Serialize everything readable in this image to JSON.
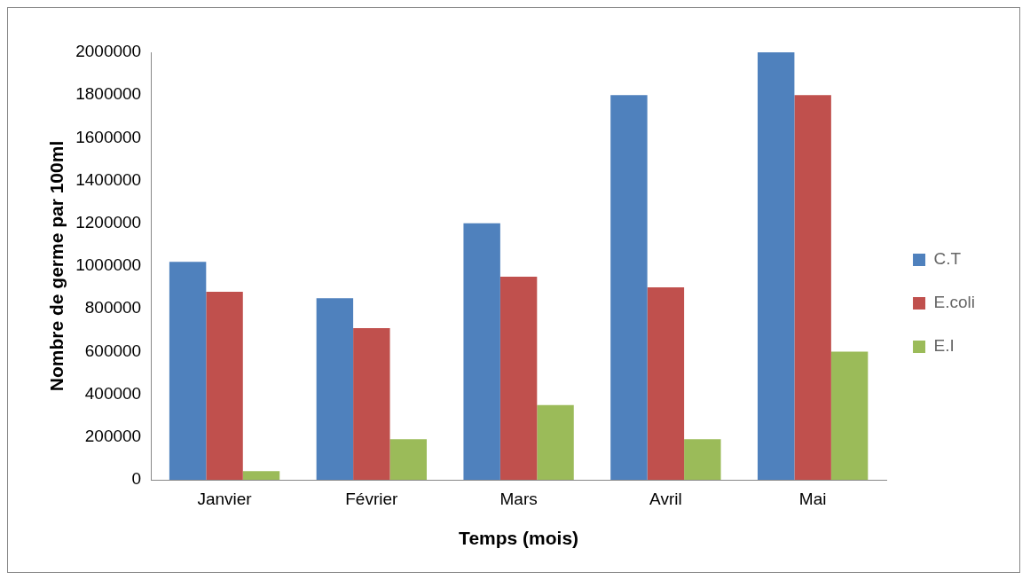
{
  "chart_data": {
    "type": "bar",
    "xlabel": "Temps (mois)",
    "ylabel": "Nombre de germe par 100ml",
    "categories": [
      "Janvier",
      "Février",
      "Mars",
      "Avril",
      "Mai"
    ],
    "series": [
      {
        "name": "C.T",
        "color": "#4f81bd",
        "values": [
          1020000,
          850000,
          1200000,
          1800000,
          2000000
        ]
      },
      {
        "name": "E.coli",
        "color": "#c0504d",
        "values": [
          880000,
          710000,
          950000,
          900000,
          1800000
        ]
      },
      {
        "name": "E.I",
        "color": "#9bbb59",
        "values": [
          40000,
          190000,
          350000,
          190000,
          600000
        ]
      }
    ],
    "ylim": [
      0,
      2000000
    ],
    "yticks": [
      0,
      200000,
      400000,
      600000,
      800000,
      1000000,
      1200000,
      1400000,
      1600000,
      1800000,
      2000000
    ],
    "grid": false,
    "legend": "right"
  }
}
